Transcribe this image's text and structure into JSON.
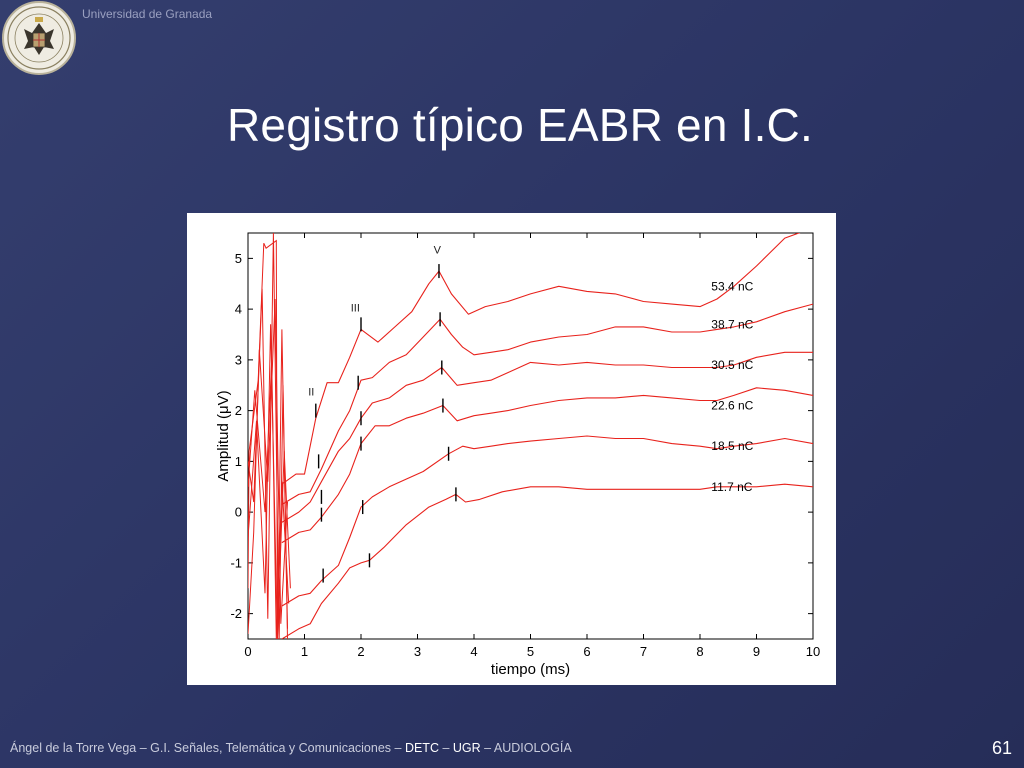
{
  "header": {
    "university": "Universidad de Granada",
    "logo": "university-seal"
  },
  "slide": {
    "title": "Registro típico EABR en I.C.",
    "page_number": "61"
  },
  "footer": {
    "author": "Ángel de la Torre Vega",
    "sep1": " – ",
    "group": "G.I. Señales, Telemática y Comunicaciones",
    "sep2": " – ",
    "dept": "DETC",
    "sep3": " – ",
    "univ": "UGR",
    "sep4": " – ",
    "course": "AUDIOLOGÍA"
  },
  "colors": {
    "background": "#2b3463",
    "trace": "#e8221c",
    "title": "#ffffff"
  },
  "chart_data": {
    "type": "line",
    "xlabel": "tiempo (ms)",
    "ylabel": "Amplitud (μV)",
    "xlim": [
      0,
      10
    ],
    "ylim": [
      -2.5,
      5.5
    ],
    "xticks": [
      0,
      1,
      2,
      3,
      4,
      5,
      6,
      7,
      8,
      9,
      10
    ],
    "yticks": [
      -2,
      -1,
      0,
      1,
      2,
      3,
      4,
      5
    ],
    "grid": false,
    "wave_labels": [
      {
        "text": "II",
        "x": 1.12,
        "y": 2.3
      },
      {
        "text": "III",
        "x": 1.9,
        "y": 3.95
      },
      {
        "text": "V",
        "x": 3.35,
        "y": 5.1
      }
    ],
    "series": [
      {
        "name": "53.4 nC",
        "x": [
          0.85,
          1.0,
          1.2,
          1.4,
          1.6,
          1.8,
          2.0,
          2.3,
          2.6,
          2.9,
          3.2,
          3.38,
          3.6,
          3.9,
          4.2,
          4.6,
          5.0,
          5.5,
          6.0,
          6.5,
          7.0,
          7.5,
          8.0,
          8.3,
          8.6,
          9.0,
          9.5,
          10.0
        ],
        "y": [
          0.75,
          0.75,
          1.85,
          2.55,
          2.55,
          3.05,
          3.6,
          3.35,
          3.65,
          3.95,
          4.5,
          4.75,
          4.3,
          3.9,
          4.05,
          4.15,
          4.3,
          4.45,
          4.35,
          4.3,
          4.15,
          4.1,
          4.05,
          4.2,
          4.45,
          4.85,
          5.4,
          5.6
        ]
      },
      {
        "name": "38.7 nC",
        "x": [
          0.9,
          1.1,
          1.3,
          1.6,
          1.8,
          2.0,
          2.2,
          2.5,
          2.8,
          3.1,
          3.4,
          3.6,
          3.8,
          4.0,
          4.3,
          4.6,
          5.0,
          5.5,
          6.0,
          6.5,
          7.0,
          7.5,
          8.0,
          8.3,
          8.6,
          9.0,
          9.5,
          10.0
        ],
        "y": [
          0.35,
          0.4,
          0.85,
          1.6,
          2.0,
          2.6,
          2.65,
          2.95,
          3.1,
          3.45,
          3.8,
          3.5,
          3.25,
          3.1,
          3.15,
          3.2,
          3.35,
          3.45,
          3.5,
          3.65,
          3.65,
          3.55,
          3.55,
          3.6,
          3.65,
          3.75,
          3.95,
          4.1
        ]
      },
      {
        "name": "30.5 nC",
        "x": [
          0.9,
          1.1,
          1.3,
          1.6,
          1.8,
          2.0,
          2.2,
          2.5,
          2.8,
          3.1,
          3.43,
          3.7,
          4.0,
          4.3,
          4.6,
          5.0,
          5.5,
          6.0,
          6.5,
          7.0,
          7.5,
          8.0,
          8.3,
          8.6,
          9.0,
          9.5,
          10.0
        ],
        "y": [
          0.0,
          0.2,
          0.6,
          1.2,
          1.45,
          1.85,
          2.15,
          2.25,
          2.5,
          2.6,
          2.85,
          2.5,
          2.55,
          2.6,
          2.75,
          2.95,
          2.9,
          2.95,
          2.9,
          2.9,
          2.85,
          2.85,
          2.85,
          2.9,
          3.05,
          3.15,
          3.15
        ]
      },
      {
        "name": "22.6 nC",
        "x": [
          0.9,
          1.1,
          1.3,
          1.6,
          1.8,
          2.0,
          2.25,
          2.5,
          2.8,
          3.1,
          3.45,
          3.7,
          4.0,
          4.3,
          4.6,
          5.0,
          5.5,
          6.0,
          6.5,
          7.0,
          7.5,
          8.0,
          8.3,
          8.6,
          9.0,
          9.5,
          10.0
        ],
        "y": [
          -0.4,
          -0.35,
          -0.1,
          0.35,
          0.75,
          1.35,
          1.7,
          1.7,
          1.85,
          1.95,
          2.1,
          1.8,
          1.9,
          1.95,
          2.0,
          2.1,
          2.2,
          2.25,
          2.25,
          2.3,
          2.25,
          2.2,
          2.2,
          2.3,
          2.45,
          2.4,
          2.3
        ]
      },
      {
        "name": "18.5 nC",
        "x": [
          0.9,
          1.1,
          1.3,
          1.6,
          1.8,
          2.0,
          2.2,
          2.5,
          2.8,
          3.1,
          3.55,
          3.8,
          4.0,
          4.3,
          4.6,
          5.0,
          5.5,
          6.0,
          6.5,
          7.0,
          7.5,
          8.0,
          8.3,
          8.6,
          9.0,
          9.5,
          10.0
        ],
        "y": [
          -1.65,
          -1.6,
          -1.35,
          -1.05,
          -0.5,
          0.1,
          0.3,
          0.5,
          0.65,
          0.8,
          1.15,
          1.3,
          1.25,
          1.3,
          1.35,
          1.4,
          1.45,
          1.5,
          1.45,
          1.45,
          1.35,
          1.3,
          1.25,
          1.3,
          1.35,
          1.45,
          1.35
        ]
      },
      {
        "name": "11.7 nC",
        "x": [
          0.9,
          1.1,
          1.3,
          1.6,
          1.8,
          2.0,
          2.15,
          2.4,
          2.8,
          3.2,
          3.5,
          3.68,
          3.85,
          4.1,
          4.5,
          5.0,
          5.5,
          6.0,
          6.5,
          7.0,
          7.5,
          8.0,
          8.3,
          8.6,
          9.0,
          9.5,
          10.0
        ],
        "y": [
          -2.3,
          -2.2,
          -1.8,
          -1.4,
          -1.1,
          -1.0,
          -0.95,
          -0.7,
          -0.25,
          0.1,
          0.25,
          0.35,
          0.2,
          0.25,
          0.4,
          0.5,
          0.5,
          0.45,
          0.45,
          0.45,
          0.45,
          0.45,
          0.5,
          0.5,
          0.5,
          0.55,
          0.5
        ]
      }
    ]
  }
}
